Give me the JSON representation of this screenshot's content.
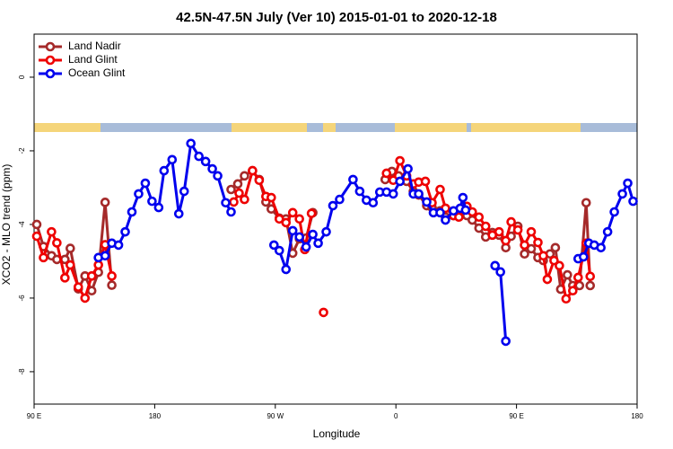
{
  "chart_data": {
    "type": "line",
    "title": "42.5N-47.5N July (Ver 10)   2015-01-01 to 2020-12-18",
    "x_label": "Longitude",
    "y_label": "XCO2 - MLO trend (ppm)",
    "xlim": [
      90,
      540
    ],
    "ylim": [
      -8.88,
      1.17
    ],
    "xticks": [
      {
        "value": 90,
        "label": "90 E"
      },
      180,
      {
        "value": 270,
        "label": "90 W"
      },
      {
        "value": 360,
        "label": "0"
      },
      {
        "value": 450,
        "label": "90 E"
      },
      {
        "value": 540,
        "label": "180"
      }
    ],
    "yticks": [
      0,
      -2,
      -4,
      -6,
      -8
    ],
    "legend": "top-left",
    "series": [
      {
        "name": "Land Nadir",
        "color": "#a52a2a",
        "x": [
          92,
          97,
          103,
          107,
          113,
          117,
          123,
          128,
          133,
          138,
          143,
          148,
          190,
          237,
          242,
          247,
          253,
          258,
          263,
          267,
          273,
          278,
          283,
          288,
          293,
          298,
          320,
          352,
          357,
          362,
          368,
          373,
          377,
          383,
          387,
          393,
          397,
          403,
          407,
          413,
          417,
          422,
          427,
          432,
          437,
          442,
          446,
          451,
          456,
          461,
          466,
          470,
          475,
          479,
          483,
          488,
          492,
          497,
          502,
          505
        ],
        "values": [
          -4.0,
          -4.6,
          -4.85,
          -4.95,
          -4.95,
          -4.65,
          -5.75,
          -5.4,
          -5.8,
          -5.3,
          -3.4,
          -5.65,
          null,
          -3.05,
          -2.9,
          -2.68,
          -2.54,
          -2.78,
          -3.39,
          -3.58,
          -3.83,
          -3.85,
          -4.78,
          -4.39,
          -4.37,
          -3.68,
          null,
          -2.78,
          -2.56,
          -2.68,
          -2.83,
          -3.1,
          -3.2,
          -3.49,
          -3.54,
          -3.63,
          -3.8,
          -3.76,
          -3.68,
          -3.76,
          -3.88,
          -4.1,
          -4.34,
          -4.22,
          -4.29,
          -4.63,
          -4.32,
          -4.05,
          -4.8,
          -4.66,
          -4.9,
          -4.98,
          -4.8,
          -4.63,
          -5.76,
          -5.37,
          -5.66,
          -5.66,
          -3.41,
          -5.66
        ]
      },
      {
        "name": "Land Glint",
        "color": "#ee0000",
        "x": [
          92,
          97,
          103,
          107,
          113,
          117,
          123,
          128,
          133,
          138,
          143,
          148,
          190,
          239,
          243,
          247,
          253,
          258,
          263,
          267,
          273,
          278,
          283,
          288,
          292,
          297,
          302,
          306,
          330,
          353,
          358,
          363,
          368,
          373,
          377,
          382,
          387,
          393,
          397,
          403,
          407,
          413,
          417,
          422,
          427,
          432,
          437,
          442,
          446,
          451,
          456,
          461,
          466,
          470,
          473,
          478,
          482,
          487,
          492,
          496,
          502,
          505
        ],
        "values": [
          -4.32,
          -4.9,
          -4.2,
          -4.5,
          -5.45,
          -5.1,
          -5.7,
          -6.0,
          -5.4,
          -5.1,
          -4.55,
          -5.4,
          null,
          -3.39,
          -3.15,
          -3.32,
          -2.54,
          -2.8,
          -3.24,
          -3.27,
          -3.85,
          -3.95,
          -3.68,
          -3.85,
          -4.68,
          -3.7,
          null,
          -6.39,
          null,
          -2.61,
          -2.8,
          -2.27,
          -2.68,
          -2.9,
          -2.85,
          -2.83,
          -3.41,
          -3.05,
          -3.56,
          -3.76,
          -3.8,
          -3.51,
          -3.66,
          -3.8,
          -4.05,
          -4.29,
          -4.2,
          -4.44,
          -3.93,
          -4.15,
          -4.56,
          -4.2,
          -4.49,
          -4.85,
          -5.49,
          -4.98,
          -5.12,
          -6.02,
          -5.8,
          -5.44,
          -4.51,
          -5.41
        ]
      },
      {
        "name": "Ocean Glint",
        "color": "#0000ee",
        "x": [
          138,
          143,
          148,
          153,
          158,
          163,
          168,
          173,
          178,
          183,
          187,
          193,
          198,
          202,
          207,
          213,
          218,
          223,
          227,
          233,
          237,
          253,
          269,
          273,
          278,
          283,
          288,
          293,
          298,
          302,
          308,
          313,
          318,
          328,
          333,
          338,
          343,
          348,
          353,
          358,
          363,
          369,
          373,
          377,
          383,
          388,
          393,
          397,
          403,
          408,
          410,
          412,
          425,
          434,
          438,
          442,
          470,
          496,
          500,
          504,
          508,
          513,
          518,
          523,
          529,
          533,
          537
        ],
        "values": [
          -4.9,
          -4.85,
          -4.51,
          -4.56,
          -4.2,
          -3.66,
          -3.17,
          -2.88,
          -3.37,
          -3.54,
          -2.54,
          -2.24,
          -3.71,
          -3.1,
          -1.8,
          -2.15,
          -2.29,
          -2.49,
          -2.68,
          -3.41,
          -3.66,
          null,
          -4.56,
          -4.71,
          -5.22,
          -4.17,
          -4.34,
          -4.61,
          -4.27,
          -4.51,
          -4.2,
          -3.49,
          -3.32,
          -2.78,
          -3.1,
          -3.34,
          -3.41,
          -3.12,
          -3.12,
          -3.17,
          -2.83,
          -2.49,
          -3.17,
          -3.17,
          -3.39,
          -3.68,
          -3.68,
          -3.88,
          -3.63,
          -3.56,
          -3.27,
          -3.61,
          null,
          -5.12,
          -5.29,
          -7.17,
          null,
          -4.93,
          -4.88,
          -4.51,
          -4.56,
          -4.63,
          -4.2,
          -3.66,
          -3.17,
          -2.88,
          -3.37
        ]
      }
    ]
  }
}
